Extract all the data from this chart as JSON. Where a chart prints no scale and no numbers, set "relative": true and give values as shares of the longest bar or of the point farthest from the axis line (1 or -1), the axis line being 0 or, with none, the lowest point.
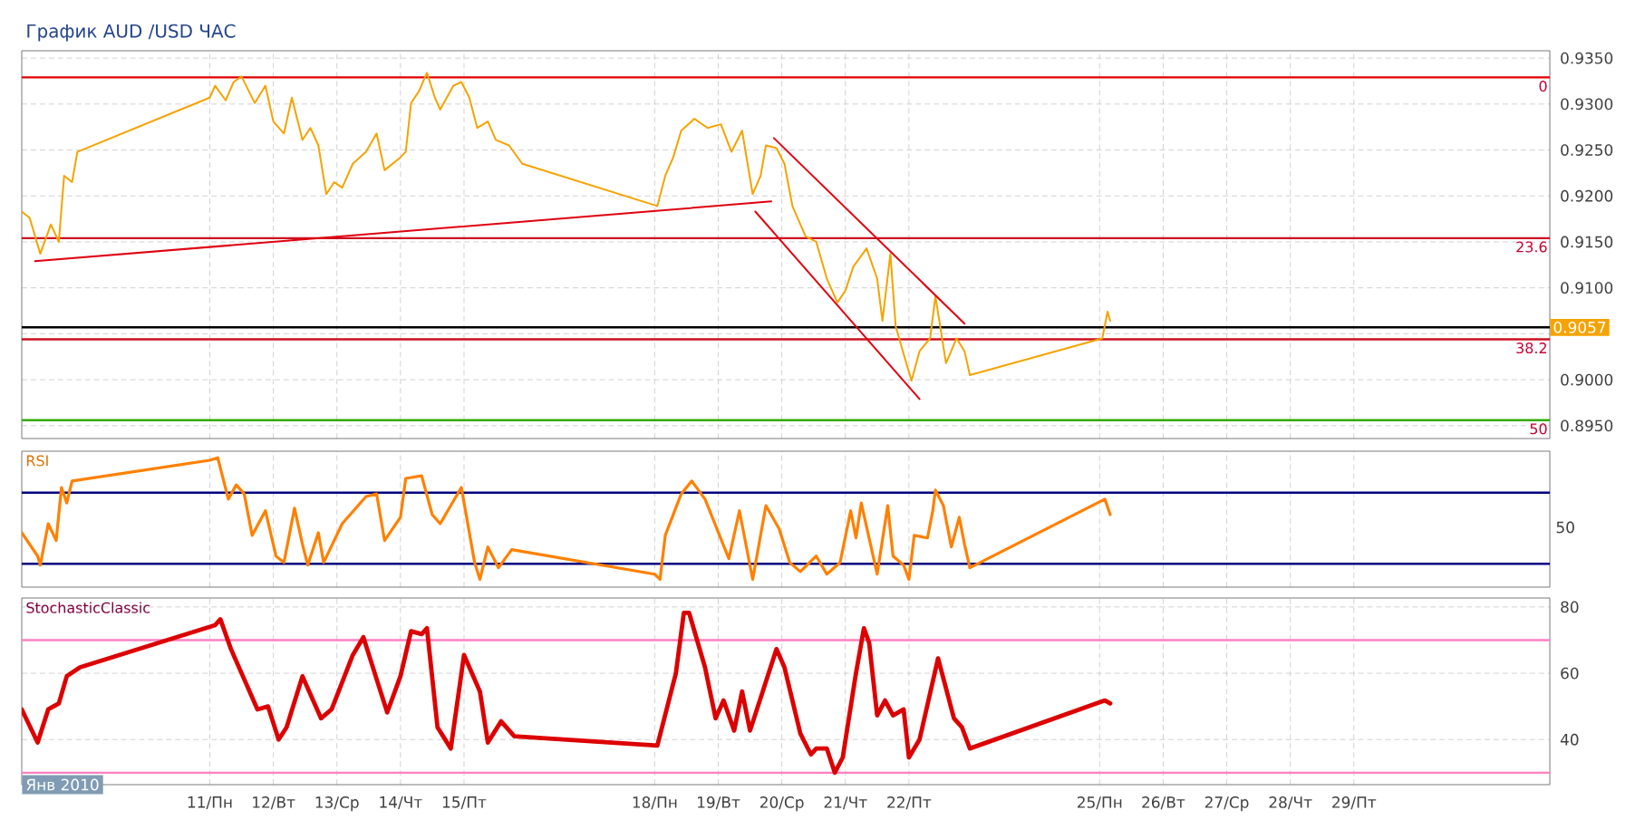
{
  "chart_data": [
    {
      "type": "line",
      "title": "График AUD /USD  ЧАС",
      "xlim": [
        "2010-01-08T01:00",
        "2010-02-01T02:00"
      ],
      "ylim": [
        0.8936,
        0.9358
      ],
      "grid": true,
      "tick_labels": "y",
      "xticks": [
        {
          "value": "2010-01-11",
          "label": null
        },
        {
          "value": "2010-01-12",
          "label": null
        },
        {
          "value": "2010-01-13",
          "label": null
        },
        {
          "value": "2010-01-14",
          "label": null
        },
        {
          "value": "2010-01-15",
          "label": null
        },
        {
          "value": "2010-01-18",
          "label": null
        },
        {
          "value": "2010-01-19",
          "label": null
        },
        {
          "value": "2010-01-20",
          "label": null
        },
        {
          "value": "2010-01-21",
          "label": null
        },
        {
          "value": "2010-01-22",
          "label": null
        },
        {
          "value": "2010-01-25",
          "label": null
        },
        {
          "value": "2010-01-26",
          "label": null
        },
        {
          "value": "2010-01-27",
          "label": null
        },
        {
          "value": "2010-01-28",
          "label": null
        },
        {
          "value": "2010-01-29",
          "label": null
        }
      ],
      "yticks": [
        {
          "value": 0.895,
          "label": "0.8950"
        },
        {
          "value": 0.9,
          "label": "0.9000"
        },
        {
          "value": 0.905,
          "label": null
        },
        {
          "value": 0.91,
          "label": "0.9100"
        },
        {
          "value": 0.915,
          "label": "0.9150"
        },
        {
          "value": 0.92,
          "label": "0.9200"
        },
        {
          "value": 0.925,
          "label": "0.9250"
        },
        {
          "value": 0.93,
          "label": "0.9300"
        },
        {
          "value": 0.935,
          "label": "0.9350"
        }
      ],
      "series": [
        {
          "color": "#f5a300",
          "x": [
            "2010-01-08T01:00",
            "2010-01-08T04:00",
            "2010-01-08T08:00",
            "2010-01-08T12:00",
            "2010-01-08T15:00",
            "2010-01-08T17:00",
            "2010-01-08T20:00",
            "2010-01-08T22:00",
            "2010-01-11T00:00",
            "2010-01-11T02:00",
            "2010-01-11T06:00",
            "2010-01-11T09:00",
            "2010-01-11T12:00",
            "2010-01-11T17:00",
            "2010-01-11T21:00",
            "2010-01-12T00:00",
            "2010-01-12T04:00",
            "2010-01-12T07:00",
            "2010-01-12T11:00",
            "2010-01-12T14:00",
            "2010-01-12T17:00",
            "2010-01-12T20:00",
            "2010-01-12T23:00",
            "2010-01-13T02:00",
            "2010-01-13T06:00",
            "2010-01-13T11:00",
            "2010-01-13T15:00",
            "2010-01-13T18:00",
            "2010-01-14T00:00",
            "2010-01-14T02:00",
            "2010-01-14T04:00",
            "2010-01-14T07:00",
            "2010-01-14T10:00",
            "2010-01-14T13:00",
            "2010-01-14T15:00",
            "2010-01-14T20:00",
            "2010-01-14T23:00",
            "2010-01-15T02:00",
            "2010-01-15T05:00",
            "2010-01-15T09:00",
            "2010-01-15T12:00",
            "2010-01-15T17:00",
            "2010-01-15T22:00",
            "2010-01-18T01:00",
            "2010-01-18T04:00",
            "2010-01-18T07:00",
            "2010-01-18T10:00",
            "2010-01-18T15:00",
            "2010-01-18T20:00",
            "2010-01-19T01:00",
            "2010-01-19T05:00",
            "2010-01-19T09:00",
            "2010-01-19T13:00",
            "2010-01-19T16:00",
            "2010-01-19T18:00",
            "2010-01-19T22:00",
            "2010-01-20T01:00",
            "2010-01-20T04:00",
            "2010-01-20T07:00",
            "2010-01-20T09:00",
            "2010-01-20T13:00",
            "2010-01-20T17:00",
            "2010-01-20T21:00",
            "2010-01-21T00:00",
            "2010-01-21T03:00",
            "2010-01-21T08:00",
            "2010-01-21T12:00",
            "2010-01-21T14:00",
            "2010-01-21T17:00",
            "2010-01-21T19:00",
            "2010-01-21T23:00",
            "2010-01-22T01:00",
            "2010-01-22T04:00",
            "2010-01-22T08:00",
            "2010-01-22T10:00",
            "2010-01-22T14:00",
            "2010-01-22T18:00",
            "2010-01-22T21:00",
            "2010-01-22T23:00",
            "2010-01-25T01:00",
            "2010-01-25T03:00",
            "2010-01-25T04:00"
          ],
          "values": [
            0.9183,
            0.9176,
            0.9137,
            0.9169,
            0.915,
            0.9222,
            0.9215,
            0.9248,
            0.9307,
            0.932,
            0.9304,
            0.9324,
            0.933,
            0.9301,
            0.932,
            0.9281,
            0.9268,
            0.9307,
            0.9261,
            0.9274,
            0.9255,
            0.9202,
            0.9215,
            0.9209,
            0.9235,
            0.9248,
            0.9268,
            0.9228,
            0.9242,
            0.9248,
            0.9301,
            0.9314,
            0.9334,
            0.9307,
            0.9294,
            0.932,
            0.9324,
            0.9307,
            0.9274,
            0.9281,
            0.9261,
            0.9255,
            0.9235,
            0.9189,
            0.9222,
            0.9242,
            0.9271,
            0.9284,
            0.9274,
            0.9278,
            0.9248,
            0.9271,
            0.9202,
            0.9222,
            0.9255,
            0.9252,
            0.9235,
            0.9189,
            0.9169,
            0.9156,
            0.915,
            0.911,
            0.9084,
            0.9097,
            0.9123,
            0.9143,
            0.911,
            0.9064,
            0.9137,
            0.9058,
            0.9018,
            0.8999,
            0.9031,
            0.9045,
            0.9091,
            0.9018,
            0.9045,
            0.9031,
            0.9005,
            0.9045,
            0.9074,
            0.9064
          ]
        },
        {
          "color": "#e00010",
          "x": [
            "2010-01-08T06:00",
            "2010-01-19T20:00"
          ],
          "values": [
            0.9129,
            0.9194
          ]
        },
        {
          "color": "#e00010",
          "x": [
            "2010-01-19T21:00",
            "2010-01-22T21:00"
          ],
          "values": [
            0.9263,
            0.9061
          ]
        },
        {
          "color": "#e00010",
          "x": [
            "2010-01-19T14:00",
            "2010-01-22T04:00"
          ],
          "values": [
            0.9183,
            0.8979
          ]
        }
      ],
      "ref_lines": [
        {
          "axis": "y",
          "value": 0.9329,
          "color": "#e00000"
        },
        {
          "axis": "y",
          "value": 0.9154,
          "color": "#cc1020"
        },
        {
          "axis": "y",
          "value": 0.9044,
          "color": "#cc1020"
        },
        {
          "axis": "y",
          "value": 0.8956,
          "color": "#33aa00"
        },
        {
          "axis": "y",
          "value": 0.9057,
          "label": "0.9057",
          "color": "#000000"
        }
      ],
      "annotations": [
        {
          "text": "0",
          "y": 0.9329
        },
        {
          "text": "23.6",
          "y": 0.9154
        },
        {
          "text": "38.2",
          "y": 0.9044
        },
        {
          "text": "50",
          "y": 0.8956
        }
      ]
    },
    {
      "type": "line",
      "title": "RSI",
      "xlim": [
        "2010-01-08T01:00",
        "2010-02-01T02:00"
      ],
      "relative": true,
      "grid": "x",
      "tick_labels": false,
      "xticks": [
        {
          "value": "2010-01-11",
          "label": null
        },
        {
          "value": "2010-01-12",
          "label": null
        },
        {
          "value": "2010-01-13",
          "label": null
        },
        {
          "value": "2010-01-14",
          "label": null
        },
        {
          "value": "2010-01-15",
          "label": null
        },
        {
          "value": "2010-01-18",
          "label": null
        },
        {
          "value": "2010-01-19",
          "label": null
        },
        {
          "value": "2010-01-20",
          "label": null
        },
        {
          "value": "2010-01-21",
          "label": null
        },
        {
          "value": "2010-01-22",
          "label": null
        },
        {
          "value": "2010-01-25",
          "label": null
        },
        {
          "value": "2010-01-26",
          "label": null
        },
        {
          "value": "2010-01-27",
          "label": null
        },
        {
          "value": "2010-01-28",
          "label": null
        },
        {
          "value": "2010-01-29",
          "label": null
        }
      ],
      "annotations": [
        "50"
      ],
      "series": [
        {
          "color": "#ff8000",
          "x": [
            "2010-01-08T01:00",
            "2010-01-08T07:00",
            "2010-01-08T08:00",
            "2010-01-08T11:00",
            "2010-01-08T14:00",
            "2010-01-08T16:00",
            "2010-01-08T18:00",
            "2010-01-08T20:00",
            "2010-01-11T00:00",
            "2010-01-11T03:00",
            "2010-01-11T07:00",
            "2010-01-11T10:00",
            "2010-01-11T13:00",
            "2010-01-11T16:00",
            "2010-01-11T21:00",
            "2010-01-12T01:00",
            "2010-01-12T04:00",
            "2010-01-12T08:00",
            "2010-01-12T11:00",
            "2010-01-12T13:00",
            "2010-01-12T17:00",
            "2010-01-12T19:00",
            "2010-01-13T02:00",
            "2010-01-13T11:00",
            "2010-01-13T15:00",
            "2010-01-13T18:00",
            "2010-01-14T00:00",
            "2010-01-14T02:00",
            "2010-01-14T08:00",
            "2010-01-14T12:00",
            "2010-01-14T15:00",
            "2010-01-14T23:00",
            "2010-01-15T04:00",
            "2010-01-15T06:00",
            "2010-01-15T09:00",
            "2010-01-15T13:00",
            "2010-01-15T18:00",
            "2010-01-18T00:00",
            "2010-01-18T02:00",
            "2010-01-18T04:00",
            "2010-01-18T10:00",
            "2010-01-18T14:00",
            "2010-01-18T19:00",
            "2010-01-19T04:00",
            "2010-01-19T08:00",
            "2010-01-19T13:00",
            "2010-01-19T18:00",
            "2010-01-19T23:00",
            "2010-01-20T03:00",
            "2010-01-20T07:00",
            "2010-01-20T13:00",
            "2010-01-20T17:00",
            "2010-01-20T22:00",
            "2010-01-21T02:00",
            "2010-01-21T04:00",
            "2010-01-21T06:00",
            "2010-01-21T12:00",
            "2010-01-21T16:00",
            "2010-01-21T18:00",
            "2010-01-21T22:00",
            "2010-01-22T00:00",
            "2010-01-22T02:00",
            "2010-01-22T07:00",
            "2010-01-22T09:00",
            "2010-01-22T10:00",
            "2010-01-22T13:00",
            "2010-01-22T16:00",
            "2010-01-22T19:00",
            "2010-01-22T21:00",
            "2010-01-22T23:00",
            "2010-01-25T02:00",
            "2010-01-25T04:00"
          ],
          "values": [
            0.42,
            0.24,
            0.17,
            0.49,
            0.36,
            0.77,
            0.65,
            0.82,
            0.98,
            1,
            0.68,
            0.79,
            0.72,
            0.4,
            0.59,
            0.24,
            0.19,
            0.61,
            0.33,
            0.17,
            0.42,
            0.19,
            0.49,
            0.7,
            0.72,
            0.36,
            0.54,
            0.84,
            0.86,
            0.56,
            0.49,
            0.77,
            0.19,
            0.06,
            0.31,
            0.15,
            0.29,
            0.1,
            0.06,
            0.4,
            0.72,
            0.82,
            0.68,
            0.22,
            0.59,
            0.06,
            0.63,
            0.45,
            0.19,
            0.12,
            0.24,
            0.1,
            0.19,
            0.59,
            0.38,
            0.65,
            0.1,
            0.63,
            0.24,
            0.17,
            0.06,
            0.4,
            0.38,
            0.59,
            0.75,
            0.63,
            0.31,
            0.54,
            0.33,
            0.15,
            0.68,
            0.56
          ]
        }
      ],
      "ref_lines": [
        {
          "axis": "y",
          "value": 0.73,
          "color": "#000080"
        },
        {
          "axis": "y",
          "value": 0.18,
          "color": "#000080"
        }
      ]
    },
    {
      "type": "line",
      "title": "StochasticClassic",
      "xlim": [
        "2010-01-08T01:00",
        "2010-02-01T02:00"
      ],
      "ylim": [
        26.4,
        82.7
      ],
      "grid": true,
      "xticks": [
        {
          "value": "2010-01-11",
          "label": "11/Пн"
        },
        {
          "value": "2010-01-12",
          "label": "12/Вт"
        },
        {
          "value": "2010-01-13",
          "label": "13/Ср"
        },
        {
          "value": "2010-01-14",
          "label": "14/Чт"
        },
        {
          "value": "2010-01-15",
          "label": "15/Пт"
        },
        {
          "value": "2010-01-18",
          "label": "18/Пн"
        },
        {
          "value": "2010-01-19",
          "label": "19/Вт"
        },
        {
          "value": "2010-01-20",
          "label": "20/Ср"
        },
        {
          "value": "2010-01-21",
          "label": "21/Чт"
        },
        {
          "value": "2010-01-22",
          "label": "22/Пт"
        },
        {
          "value": "2010-01-25",
          "label": "25/Пн"
        },
        {
          "value": "2010-01-26",
          "label": "26/Вт"
        },
        {
          "value": "2010-01-27",
          "label": "27/Ср"
        },
        {
          "value": "2010-01-28",
          "label": "28/Чт"
        },
        {
          "value": "2010-01-29",
          "label": "29/Пт"
        }
      ],
      "yticks": [
        40,
        60,
        80
      ],
      "series": [
        {
          "color": "#dd0000",
          "x": [
            "2010-01-08T01:00",
            "2010-01-08T07:00",
            "2010-01-08T11:00",
            "2010-01-08T15:00",
            "2010-01-08T18:00",
            "2010-01-08T23:00",
            "2010-01-11T02:00",
            "2010-01-11T04:00",
            "2010-01-11T08:00",
            "2010-01-11T13:00",
            "2010-01-11T18:00",
            "2010-01-11T22:00",
            "2010-01-12T02:00",
            "2010-01-12T05:00",
            "2010-01-12T11:00",
            "2010-01-12T18:00",
            "2010-01-12T22:00",
            "2010-01-13T06:00",
            "2010-01-13T10:00",
            "2010-01-13T15:00",
            "2010-01-13T19:00",
            "2010-01-14T00:00",
            "2010-01-14T04:00",
            "2010-01-14T08:00",
            "2010-01-14T10:00",
            "2010-01-14T14:00",
            "2010-01-14T19:00",
            "2010-01-15T00:00",
            "2010-01-15T06:00",
            "2010-01-15T09:00",
            "2010-01-15T14:00",
            "2010-01-15T19:00",
            "2010-01-18T01:00",
            "2010-01-18T08:00",
            "2010-01-18T11:00",
            "2010-01-18T13:00",
            "2010-01-18T19:00",
            "2010-01-18T23:00",
            "2010-01-19T02:00",
            "2010-01-19T06:00",
            "2010-01-19T09:00",
            "2010-01-19T12:00",
            "2010-01-19T22:00",
            "2010-01-20T01:00",
            "2010-01-20T07:00",
            "2010-01-20T11:00",
            "2010-01-20T13:00",
            "2010-01-20T17:00",
            "2010-01-20T20:00",
            "2010-01-20T23:00",
            "2010-01-21T04:00",
            "2010-01-21T07:00",
            "2010-01-21T09:00",
            "2010-01-21T12:00",
            "2010-01-21T15:00",
            "2010-01-21T18:00",
            "2010-01-21T22:00",
            "2010-01-22T00:00",
            "2010-01-22T04:00",
            "2010-01-22T11:00",
            "2010-01-22T17:00",
            "2010-01-22T20:00",
            "2010-01-22T23:00",
            "2010-01-25T02:00",
            "2010-01-25T04:00"
          ],
          "values": [
            49.1,
            39.1,
            49.1,
            50.9,
            59.1,
            61.8,
            74.5,
            76.3,
            67.3,
            58.2,
            49.1,
            50,
            40,
            43.7,
            59.1,
            46.4,
            49.1,
            65.5,
            70.9,
            58.2,
            48.2,
            59.1,
            72.7,
            71.8,
            73.6,
            43.7,
            37.3,
            65.5,
            54.5,
            39.1,
            45.5,
            41,
            38.2,
            60,
            78.2,
            78.2,
            61.8,
            46.4,
            51.8,
            42.7,
            54.5,
            42.7,
            67.3,
            61.8,
            41.8,
            35.5,
            37.3,
            37.3,
            30,
            34.6,
            60,
            73.6,
            69.1,
            47.3,
            51.8,
            47.3,
            49.1,
            34.6,
            40,
            64.5,
            46.4,
            43.7,
            37.3,
            51.8,
            50.9
          ]
        }
      ],
      "ref_lines": [
        {
          "axis": "y",
          "value": 70,
          "color": "#ff80c0"
        },
        {
          "axis": "y",
          "value": 30,
          "color": "#ff80c0"
        }
      ],
      "annotations": [
        "Янв 2010"
      ]
    }
  ]
}
